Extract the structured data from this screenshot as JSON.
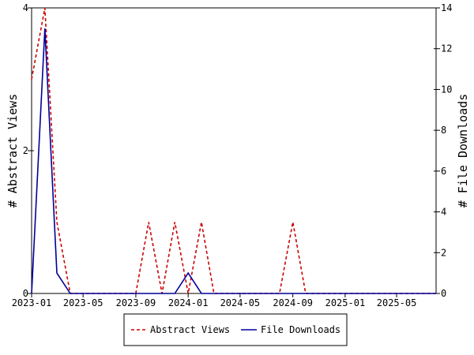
{
  "chart_data": {
    "type": "line",
    "title": "",
    "ylabel_left": "# Abstract Views",
    "ylabel_right": "# File Downloads",
    "xlabel": "",
    "xlim": [
      "2023-01-01",
      "2025-08-01"
    ],
    "ylim_left": [
      0,
      4
    ],
    "ylim_right": [
      0,
      14
    ],
    "x_ticks": [
      {
        "date": "2023-01-01",
        "label": "2023-01"
      },
      {
        "date": "2023-05-01",
        "label": "2023-05"
      },
      {
        "date": "2023-09-01",
        "label": "2023-09"
      },
      {
        "date": "2024-01-01",
        "label": "2024-01"
      },
      {
        "date": "2024-05-01",
        "label": "2024-05"
      },
      {
        "date": "2024-09-01",
        "label": "2024-09"
      },
      {
        "date": "2025-01-01",
        "label": "2025-01"
      },
      {
        "date": "2025-05-01",
        "label": "2025-05"
      }
    ],
    "y_ticks_left": [
      0,
      2,
      4
    ],
    "y_ticks_right": [
      0,
      2,
      4,
      6,
      8,
      10,
      12,
      14
    ],
    "grid": false,
    "legend_position": "bottom-center",
    "series": [
      {
        "name": "Abstract Views",
        "axis": "left",
        "color": "#cc0000",
        "style": "dashed",
        "x": [
          "2023-01-01",
          "2023-02-01",
          "2023-03-01",
          "2023-04-01",
          "2023-05-01",
          "2023-06-01",
          "2023-07-01",
          "2023-08-01",
          "2023-09-01",
          "2023-10-01",
          "2023-11-01",
          "2023-12-01",
          "2024-01-01",
          "2024-02-01",
          "2024-03-01",
          "2024-04-01",
          "2024-05-01",
          "2024-06-01",
          "2024-07-01",
          "2024-08-01",
          "2024-09-01",
          "2024-10-01",
          "2024-11-01",
          "2024-12-01",
          "2025-01-01",
          "2025-02-01",
          "2025-03-01",
          "2025-04-01",
          "2025-05-01",
          "2025-06-01",
          "2025-07-01",
          "2025-08-01"
        ],
        "values": [
          3,
          4,
          1,
          0,
          0,
          0,
          0,
          0,
          0,
          1,
          0,
          1,
          0,
          1,
          0,
          0,
          0,
          0,
          0,
          0,
          1,
          0,
          0,
          0,
          0,
          0,
          0,
          0,
          0,
          0,
          0,
          0
        ]
      },
      {
        "name": "File Downloads",
        "axis": "right",
        "color": "#000099",
        "style": "solid",
        "x": [
          "2023-01-01",
          "2023-02-01",
          "2023-03-01",
          "2023-04-01",
          "2023-05-01",
          "2023-06-01",
          "2023-07-01",
          "2023-08-01",
          "2023-09-01",
          "2023-10-01",
          "2023-11-01",
          "2023-12-01",
          "2024-01-01",
          "2024-02-01",
          "2024-03-01",
          "2024-04-01",
          "2024-05-01",
          "2024-06-01",
          "2024-07-01",
          "2024-08-01",
          "2024-09-01",
          "2024-10-01",
          "2024-11-01",
          "2024-12-01",
          "2025-01-01",
          "2025-02-01",
          "2025-03-01",
          "2025-04-01",
          "2025-05-01",
          "2025-06-01",
          "2025-07-01",
          "2025-08-01"
        ],
        "values": [
          0,
          13,
          1,
          0,
          0,
          0,
          0,
          0,
          0,
          0,
          0,
          0,
          1,
          0,
          0,
          0,
          0,
          0,
          0,
          0,
          0,
          0,
          0,
          0,
          0,
          0,
          0,
          0,
          0,
          0,
          0,
          0
        ]
      }
    ]
  }
}
